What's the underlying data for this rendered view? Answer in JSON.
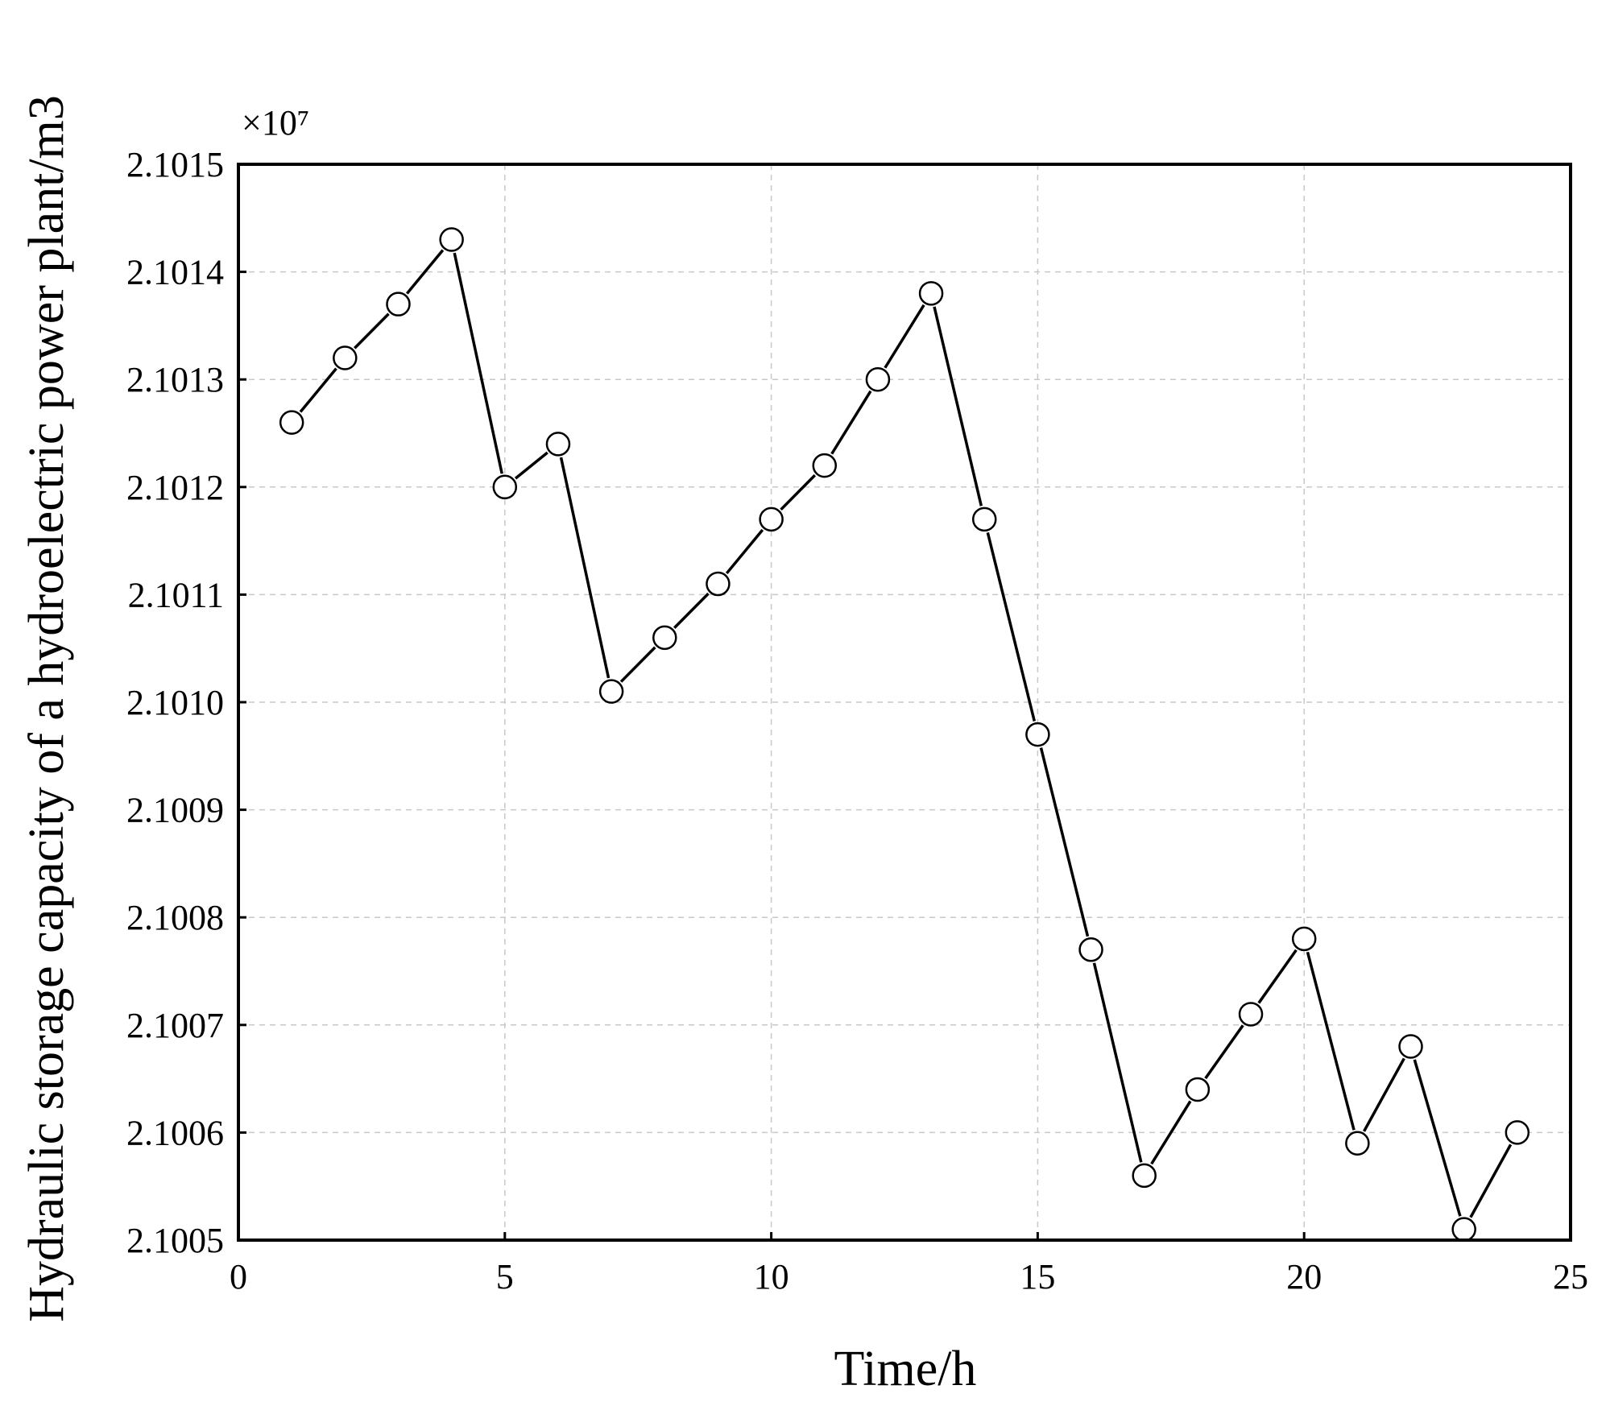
{
  "chart_data": {
    "type": "line",
    "title": "",
    "xlabel": "Time/h",
    "ylabel": "Hydraulic storage capacity of a hydroelectric power plant/m3",
    "y_multiplier_label": "×10⁷",
    "xlim": [
      0,
      25
    ],
    "ylim": [
      2.1005,
      2.1015
    ],
    "x_ticks": [
      "0",
      "5",
      "10",
      "15",
      "20",
      "25"
    ],
    "y_ticks": [
      "2.1005",
      "2.1006",
      "2.1007",
      "2.1008",
      "2.1009",
      "2.1010",
      "2.1011",
      "2.1012",
      "2.1013",
      "2.1014",
      "2.1015"
    ],
    "grid": true,
    "marker": "open-circle",
    "line_color": "#000000",
    "series": [
      {
        "x": [
          1,
          2,
          3,
          4,
          5,
          6,
          7,
          8,
          9,
          10,
          11,
          12,
          13,
          14,
          15,
          16,
          17,
          18,
          19,
          20,
          21,
          22,
          23,
          24
        ],
        "values": [
          2.10126,
          2.10132,
          2.10137,
          2.10143,
          2.1012,
          2.10124,
          2.10101,
          2.10106,
          2.10111,
          2.10117,
          2.10122,
          2.1013,
          2.10138,
          2.10117,
          2.10097,
          2.10077,
          2.10056,
          2.10064,
          2.10071,
          2.10078,
          2.10059,
          2.10068,
          2.10051,
          2.1006
        ]
      }
    ]
  }
}
